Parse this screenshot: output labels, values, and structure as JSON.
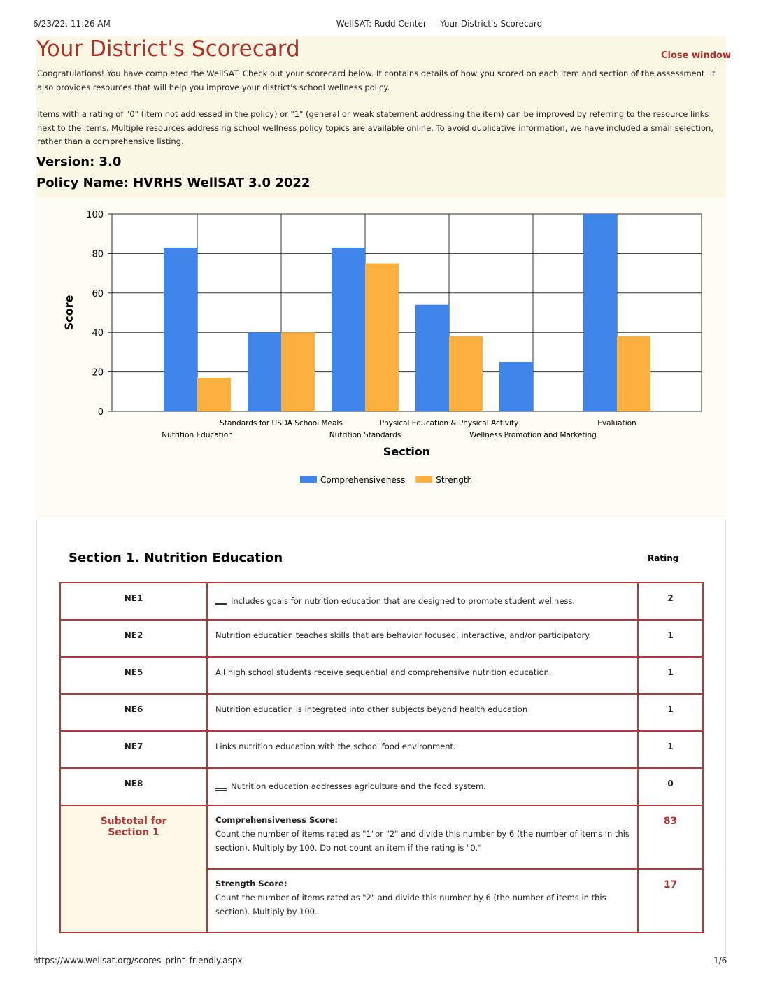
{
  "print_header": {
    "date": "6/23/22, 11:26 AM",
    "title": "WellSAT: Rudd Center — Your District's Scorecard"
  },
  "header": {
    "title": "Your District's Scorecard",
    "close": "Close window"
  },
  "intro": [
    "Congratulations! You have completed the WellSAT. Check out your scorecard below. It contains details of how you scored on each item and section of the assessment. It also provides resources that will help you improve your district's school wellness policy.",
    "Items with a rating of \"0\" (item not addressed in the policy) or \"1\" (general or weak statement addressing the item) can be improved by referring to the resource links next to the items.  Multiple resources addressing school wellness policy topics are available online. To avoid duplicative information, we have included a small selection, rather than a comprehensive listing."
  ],
  "version": "Version: 3.0",
  "policy": "Policy Name: HVRHS WellSAT 3.0 2022",
  "chart_data": {
    "type": "bar",
    "x_label": "Section",
    "y_label": "Score",
    "categories": [
      "Nutrition Education",
      "Standards for USDA School Meals",
      "Nutrition Standards",
      "Physical Education & Physical Activity",
      "Wellness Promotion and Marketing",
      "Evaluation"
    ],
    "series": [
      {
        "name": "Comprehensiveness",
        "color": "#3f85ea",
        "values": [
          83,
          40,
          83,
          54,
          25,
          100
        ]
      },
      {
        "name": "Strength",
        "color": "#fbb040",
        "values": [
          17,
          40,
          75,
          38,
          0,
          38
        ]
      }
    ],
    "ylim": [
      0,
      100
    ],
    "yticks": [
      0,
      20,
      40,
      60,
      80,
      100
    ],
    "grid": true,
    "legend": "bottom"
  },
  "section": {
    "title": "Section 1. Nutrition Education",
    "rating_label": "Rating",
    "rows": [
      [
        "NE1",
        "Includes goals for nutrition education that are designed to promote student wellness.",
        2
      ],
      [
        "NE2",
        "Nutrition education teaches skills that are behavior focused, interactive, and/or participatory.",
        1
      ],
      [
        "NE5",
        "All high school students receive sequential and comprehensive nutrition education.",
        1
      ],
      [
        "NE6",
        "Nutrition education is integrated into other subjects beyond health education",
        1
      ],
      [
        "NE7",
        "Links nutrition education with the school food environment.",
        1
      ],
      [
        "NE8",
        "Nutrition education addresses agriculture and the food system.",
        0
      ]
    ],
    "subtotal": {
      "label": "Subtotal for Section 1",
      "scores": [
        {
          "label": "Comprehensiveness Score:",
          "text": "Count the number of items rated as \"1\"or \"2\" and divide this number by 6 (the number of items in this section). Multiply by 100. Do not count an item if the rating is \"0.\"",
          "value": 83
        },
        {
          "label": "Strength Score:",
          "text": "Count the number of items rated as \"2\" and divide this number by 6 (the number of items in this section). Multiply by 100.",
          "value": 17
        }
      ]
    }
  },
  "print_footer": {
    "url": "https://www.wellsat.org/scores_print_friendly.aspx",
    "page": "1/6"
  }
}
